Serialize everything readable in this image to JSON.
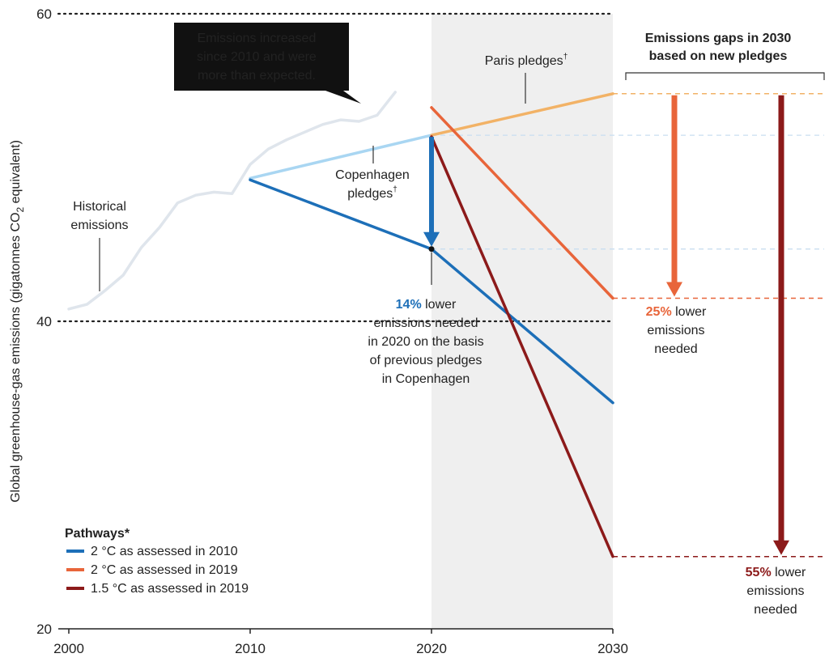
{
  "chart_data": {
    "type": "line",
    "ylabel": "Global greenhouse-gas emissions (gigatonnes CO",
    "ylabel_sub": "2",
    "ylabel_end": " equivalent)",
    "xlim": [
      2000,
      2030
    ],
    "ylim": [
      20,
      60
    ],
    "x_ticks": [
      "2000",
      "2010",
      "2020",
      "2030"
    ],
    "y_ticks": [
      "60",
      "40",
      "20"
    ],
    "grid": "dotted horizontal lines at 40 and 60",
    "shaded_period": [
      2020,
      2030
    ],
    "historical": {
      "label_lines": [
        "Historical",
        "emissions"
      ],
      "x": [
        2000,
        2001,
        2002,
        2003,
        2004,
        2005,
        2006,
        2007,
        2008,
        2009,
        2010,
        2011,
        2012,
        2013,
        2014,
        2015,
        2016,
        2017,
        2018
      ],
      "y": [
        40.8,
        41.1,
        42.0,
        43.0,
        44.8,
        46.1,
        47.7,
        48.2,
        48.4,
        48.3,
        50.2,
        51.2,
        51.8,
        52.3,
        52.8,
        53.1,
        53.0,
        53.4,
        54.9
      ]
    },
    "pledges": [
      {
        "name": "Copenhagen pledges",
        "label_lines": [
          "Copenhagen",
          "pledges"
        ],
        "superscript": "†",
        "color": "#a9d6f2",
        "x": [
          2010,
          2020
        ],
        "y": [
          49.3,
          52.1
        ]
      },
      {
        "name": "Paris pledges",
        "label_lines": [
          "Paris pledges"
        ],
        "superscript": "†",
        "color": "#f2b266",
        "x": [
          2020,
          2030
        ],
        "y": [
          52.1,
          54.8
        ]
      }
    ],
    "series": [
      {
        "name": "2 °C as assessed in 2010",
        "color": "#1d6fb8",
        "x": [
          2010,
          2020,
          2030
        ],
        "y": [
          49.2,
          44.7,
          34.7
        ]
      },
      {
        "name": "2 °C as assessed in 2019",
        "color": "#e8653a",
        "x": [
          2020,
          2030
        ],
        "y": [
          53.9,
          41.5
        ]
      },
      {
        "name": "1.5 °C as assessed in 2019",
        "color": "#8c1a1a",
        "x": [
          2020,
          2030
        ],
        "y": [
          52.0,
          24.7
        ]
      }
    ],
    "legend": {
      "title": "Pathways*",
      "position": "bottom-left"
    },
    "callout": {
      "lines": [
        "Emissions increased",
        "since 2010 and were",
        "more than expected."
      ]
    },
    "gap_2020": {
      "percent": "14%",
      "rest_first_line": " lower",
      "lines": [
        "emissions needed",
        "in 2020 on the basis",
        "of previous pledges",
        "in Copenhagen"
      ],
      "color": "#1d6fb8",
      "from": 52.1,
      "to": 44.7
    },
    "gaps_2030_title": [
      "Emissions gaps in 2030",
      "based on new pledges"
    ],
    "gaps_2030": [
      {
        "percent": "25%",
        "rest_first_line": " lower",
        "lines": [
          "emissions",
          "needed"
        ],
        "color": "#e8653a",
        "from": 54.8,
        "to": 41.5
      },
      {
        "percent": "55%",
        "rest_first_line": " lower",
        "lines": [
          "emissions",
          "needed"
        ],
        "color": "#8c1a1a",
        "from": 54.8,
        "to": 24.7
      }
    ]
  }
}
